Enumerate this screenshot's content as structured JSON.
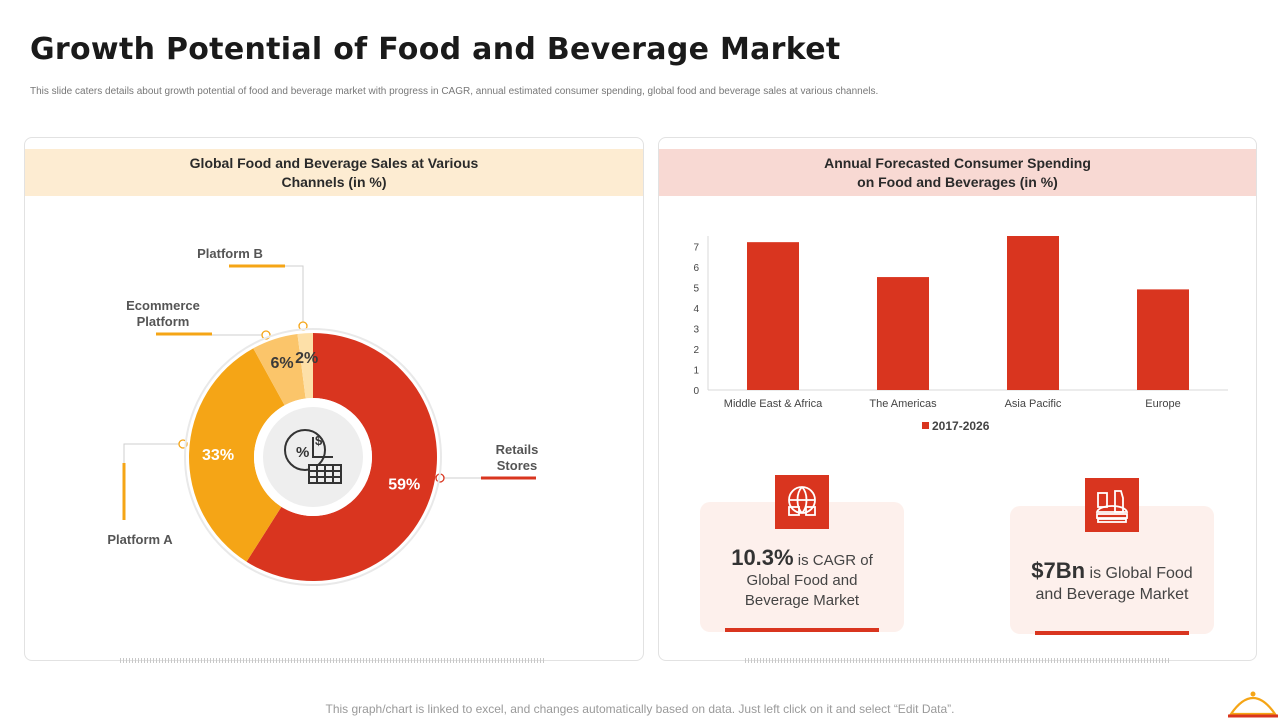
{
  "page": {
    "title": "Growth Potential of Food and Beverage Market",
    "subtitle": "This slide caters details about growth potential of food and beverage market with progress in CAGR, annual estimated consumer spending, global food and beverage sales at various channels.",
    "footnote": "This graph/chart is linked to excel,  and changes automatically based on data. Just left click on it and select “Edit Data”."
  },
  "left_panel": {
    "heading": "Global Food and Beverage Sales at Various\nChannels (in %)"
  },
  "right_panel": {
    "heading": "Annual Forecasted Consumer Spending\non Food and Beverages (in %)"
  },
  "colors": {
    "accent_red": "#d9351f",
    "orange": "#f5a516",
    "light_orange": "#fbc56a",
    "pale_orange": "#fde0a8"
  },
  "icons": {
    "donut_center": "pie-chart-money-icon",
    "stat1": "globe-food-icon",
    "stat2": "fast-food-icon",
    "brand": "cloche-icon"
  },
  "chart_data": [
    {
      "type": "pie",
      "title": "Global Food and Beverage Sales at Various Channels (in %)",
      "slices": [
        {
          "label": "Retails Stores",
          "value": 59,
          "display": "59%"
        },
        {
          "label": "Platform A",
          "value": 33,
          "display": "33%"
        },
        {
          "label": "Ecommerce Platform",
          "value": 6,
          "display": "6%"
        },
        {
          "label": "Platform B",
          "value": 2,
          "display": "2%"
        }
      ]
    },
    {
      "type": "bar",
      "title": "Annual Forecasted Consumer Spending on Food and Beverages (in %)",
      "categories": [
        "Middle East & Africa",
        "The Americas",
        "Asia Pacific",
        "Europe"
      ],
      "series": [
        {
          "name": "2017-2026",
          "values": [
            7.2,
            5.5,
            7.5,
            4.9
          ]
        }
      ],
      "ylim": [
        0,
        7.5
      ],
      "yticks": [
        "0",
        "1",
        "2",
        "3",
        "4",
        "5",
        "6",
        "7"
      ],
      "legend": "bottom"
    }
  ],
  "stats": [
    {
      "value": "10.3%",
      "text_inline": "is CAGR of",
      "text_rest": "Global Food and\nBeverage Market"
    },
    {
      "value": "$7Bn",
      "text_inline": "is Global Food",
      "text_rest": "and Beverage Market"
    }
  ]
}
